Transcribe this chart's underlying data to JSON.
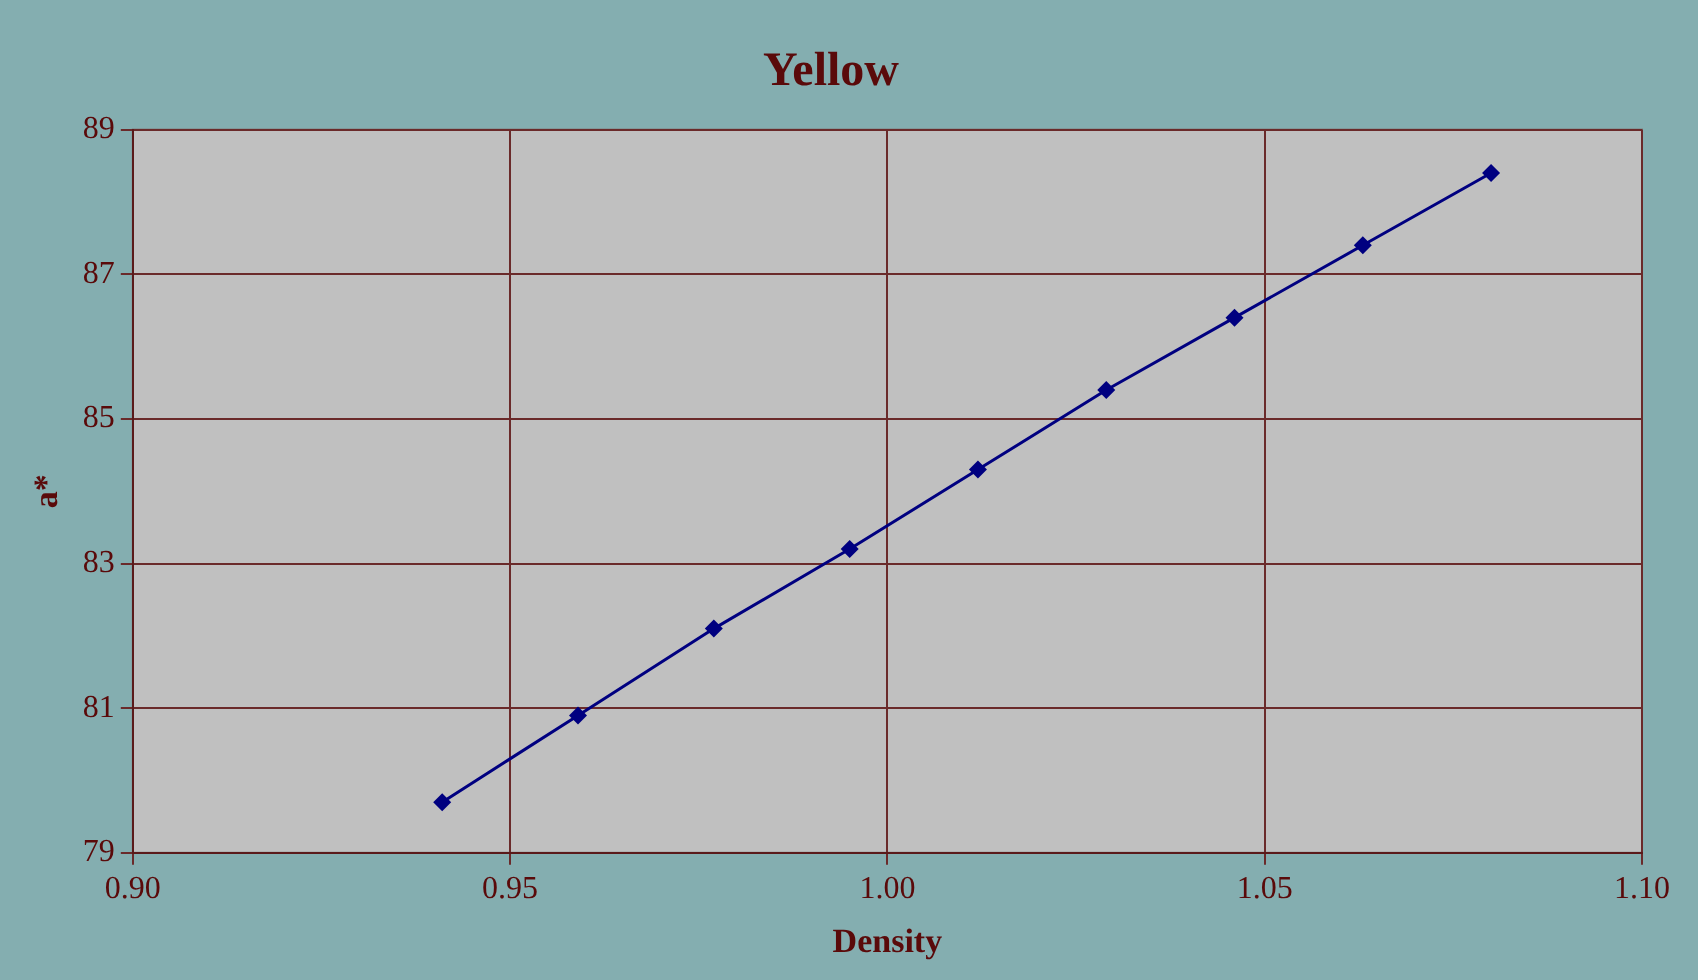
{
  "chart_data": {
    "type": "line",
    "title": "Yellow",
    "xlabel": "Density",
    "ylabel": "a*",
    "x": [
      0.941,
      0.959,
      0.977,
      0.995,
      1.012,
      1.029,
      1.046,
      1.063,
      1.08
    ],
    "series": [
      {
        "color": "#000080",
        "values": [
          79.7,
          80.9,
          82.1,
          83.2,
          84.3,
          85.4,
          86.4,
          87.4,
          88.4
        ]
      }
    ],
    "xlim": [
      0.9,
      1.1
    ],
    "xticks": [
      {
        "value": 0.9,
        "label": "0.90"
      },
      {
        "value": 0.95,
        "label": "0.95"
      },
      {
        "value": 1.0,
        "label": "1.00"
      },
      {
        "value": 1.05,
        "label": "1.05"
      },
      {
        "value": 1.1,
        "label": "1.10"
      }
    ],
    "ylim": [
      79,
      89
    ],
    "yticks": [
      79,
      81,
      83,
      85,
      87,
      89
    ],
    "grid": true,
    "legend": false,
    "marker": "diamond",
    "line_style": "solid"
  }
}
